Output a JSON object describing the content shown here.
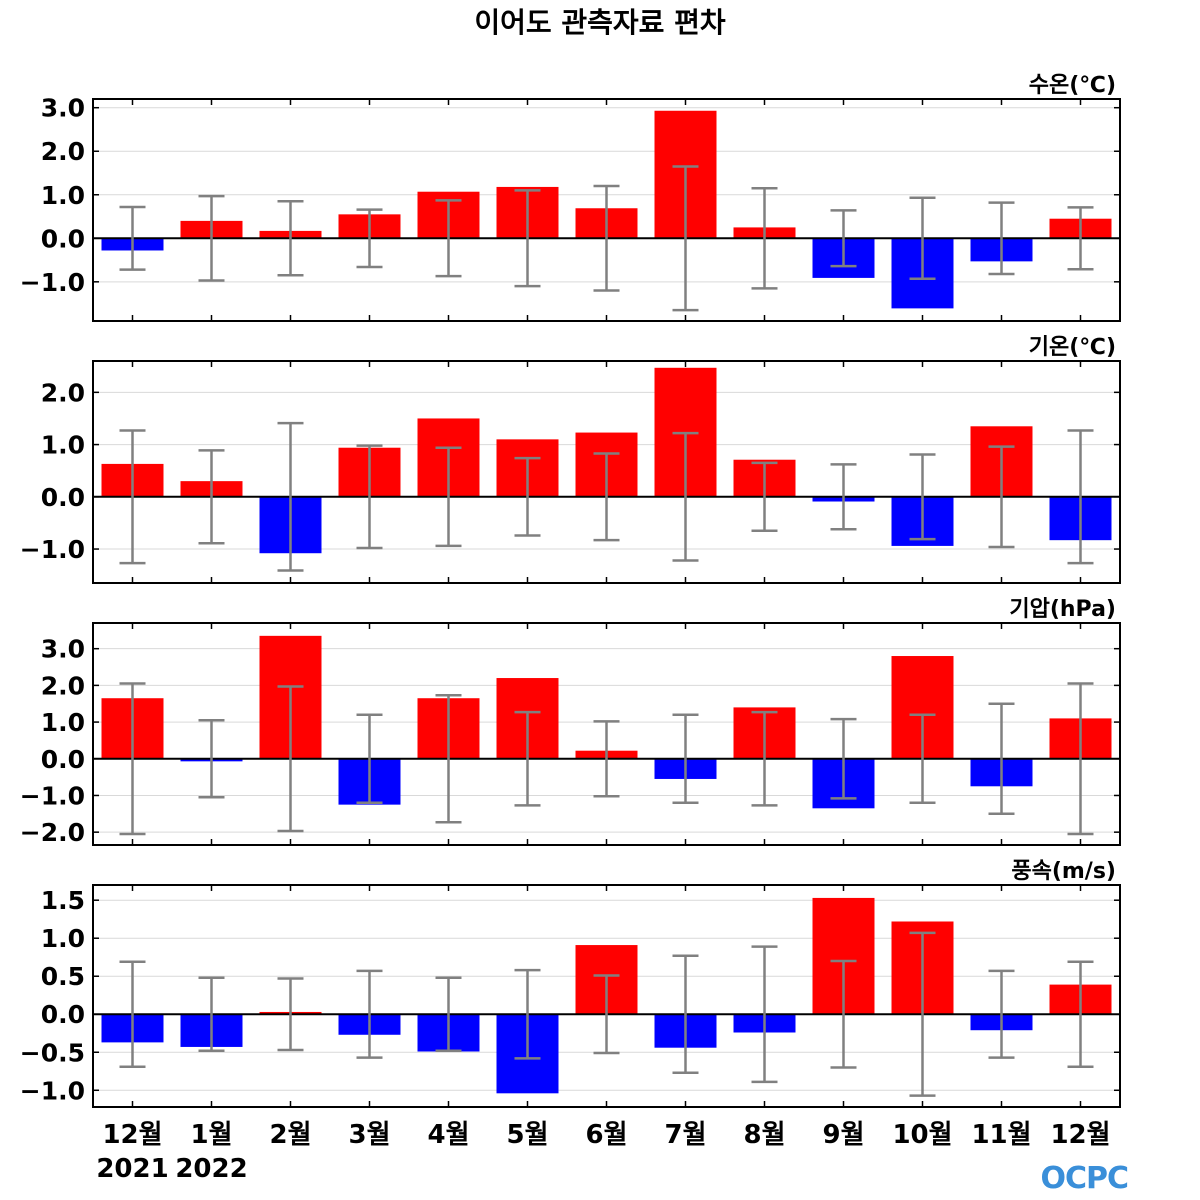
{
  "chart_data": {
    "type": "bar",
    "title": "이어도 관측자료 편차",
    "categories": [
      "12월",
      "1월",
      "2월",
      "3월",
      "4월",
      "5월",
      "6월",
      "7월",
      "8월",
      "9월",
      "10월",
      "11월",
      "12월"
    ],
    "year_labels": [
      "2021",
      "2022"
    ],
    "logo_text": "OCPC",
    "colors": {
      "positive": "#ff0000",
      "negative": "#0000ff",
      "error_bar": "#808080",
      "zero_line": "#000000",
      "grid": "#d9d9d9"
    },
    "panels": [
      {
        "label": "수온(℃)",
        "ylim": [
          -1.9,
          3.2
        ],
        "yticks": [
          -1.0,
          0.0,
          1.0,
          2.0,
          3.0
        ],
        "ytick_labels": [
          "−1.0",
          "0.0",
          "1.0",
          "2.0",
          "3.0"
        ],
        "values": [
          -0.28,
          0.4,
          0.17,
          0.55,
          1.07,
          1.18,
          0.69,
          2.93,
          0.25,
          -0.91,
          -1.61,
          -0.53,
          0.45
        ],
        "errors": [
          0.72,
          0.97,
          0.85,
          0.66,
          0.87,
          1.1,
          1.2,
          1.65,
          1.15,
          0.64,
          0.93,
          0.82,
          0.71
        ]
      },
      {
        "label": "기온(℃)",
        "ylim": [
          -1.65,
          2.6
        ],
        "yticks": [
          -1.0,
          0.0,
          1.0,
          2.0
        ],
        "ytick_labels": [
          "−1.0",
          "0.0",
          "1.0",
          "2.0"
        ],
        "values": [
          0.63,
          0.3,
          -1.08,
          0.94,
          1.5,
          1.1,
          1.23,
          2.47,
          0.71,
          -0.09,
          -0.94,
          1.35,
          -0.83
        ],
        "errors": [
          1.27,
          0.89,
          1.41,
          0.98,
          0.94,
          0.74,
          0.83,
          1.22,
          0.65,
          0.62,
          0.81,
          0.96,
          1.27
        ]
      },
      {
        "label": "기압(hPa)",
        "ylim": [
          -2.35,
          3.7
        ],
        "yticks": [
          -2.0,
          -1.0,
          0.0,
          1.0,
          2.0,
          3.0
        ],
        "ytick_labels": [
          "−2.0",
          "−1.0",
          "0.0",
          "1.0",
          "2.0",
          "3.0"
        ],
        "values": [
          1.65,
          -0.07,
          3.35,
          -1.25,
          1.65,
          2.2,
          0.22,
          -0.55,
          1.4,
          -1.35,
          2.8,
          -0.75,
          1.1
        ],
        "errors": [
          2.05,
          1.05,
          1.97,
          1.2,
          1.73,
          1.27,
          1.02,
          1.2,
          1.27,
          1.08,
          1.2,
          1.5,
          2.05
        ]
      },
      {
        "label": "풍속(m/s)",
        "ylim": [
          -1.22,
          1.7
        ],
        "yticks": [
          -1.0,
          -0.5,
          0.0,
          0.5,
          1.0,
          1.5
        ],
        "ytick_labels": [
          "−1.0",
          "−0.5",
          "0.0",
          "0.5",
          "1.0",
          "1.5"
        ],
        "values": [
          -0.37,
          -0.43,
          0.03,
          -0.27,
          -0.49,
          -1.04,
          0.91,
          -0.44,
          -0.24,
          1.53,
          1.22,
          -0.21,
          0.39
        ],
        "errors": [
          0.69,
          0.48,
          0.47,
          0.57,
          0.48,
          0.58,
          0.51,
          0.77,
          0.89,
          0.7,
          1.07,
          0.57,
          0.69
        ]
      }
    ]
  }
}
